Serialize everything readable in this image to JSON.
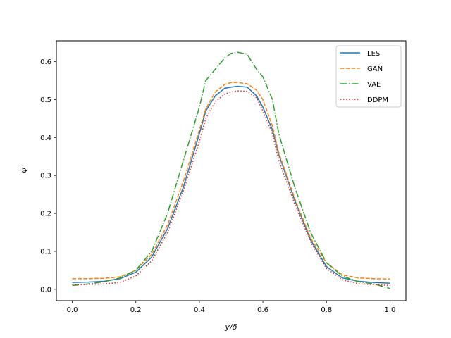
{
  "chart_data": {
    "type": "line",
    "title": "",
    "xlabel": "y/δ",
    "ylabel": "ψ",
    "xlim": [
      -0.05,
      1.05
    ],
    "ylim": [
      -0.03,
      0.655
    ],
    "xticks": [
      0.0,
      0.2,
      0.4,
      0.6,
      0.8,
      1.0
    ],
    "xtick_labels": [
      "0.0",
      "0.2",
      "0.4",
      "0.6",
      "0.8",
      "1.0"
    ],
    "yticks": [
      0.0,
      0.1,
      0.2,
      0.3,
      0.4,
      0.5,
      0.6
    ],
    "ytick_labels": [
      "0.0",
      "0.1",
      "0.2",
      "0.3",
      "0.4",
      "0.5",
      "0.6"
    ],
    "grid": false,
    "legend_position": "upper right",
    "x": [
      0.0,
      0.05,
      0.1,
      0.15,
      0.2,
      0.25,
      0.3,
      0.35,
      0.4,
      0.42,
      0.45,
      0.48,
      0.5,
      0.52,
      0.55,
      0.58,
      0.6,
      0.63,
      0.65,
      0.7,
      0.75,
      0.8,
      0.85,
      0.9,
      0.95,
      1.0
    ],
    "series": [
      {
        "name": "LES",
        "color": "#1f77b4",
        "dash": "solid",
        "values": [
          0.018,
          0.019,
          0.021,
          0.028,
          0.045,
          0.085,
          0.16,
          0.27,
          0.41,
          0.47,
          0.51,
          0.53,
          0.533,
          0.535,
          0.533,
          0.51,
          0.48,
          0.42,
          0.355,
          0.235,
          0.13,
          0.06,
          0.03,
          0.021,
          0.018,
          0.016
        ]
      },
      {
        "name": "GAN",
        "color": "#ff7f0e",
        "dash": "dashed",
        "values": [
          0.028,
          0.028,
          0.029,
          0.033,
          0.05,
          0.092,
          0.17,
          0.285,
          0.42,
          0.475,
          0.52,
          0.54,
          0.545,
          0.545,
          0.542,
          0.525,
          0.5,
          0.43,
          0.36,
          0.24,
          0.135,
          0.07,
          0.038,
          0.03,
          0.028,
          0.027
        ]
      },
      {
        "name": "VAE",
        "color": "#2ca02c",
        "dash": "dashdot",
        "values": [
          0.01,
          0.014,
          0.02,
          0.03,
          0.05,
          0.1,
          0.2,
          0.34,
          0.48,
          0.55,
          0.58,
          0.61,
          0.622,
          0.625,
          0.62,
          0.58,
          0.56,
          0.5,
          0.41,
          0.27,
          0.15,
          0.07,
          0.035,
          0.02,
          0.014,
          0.002
        ]
      },
      {
        "name": "DDPM",
        "color": "#d62728",
        "dash": "dotted",
        "values": [
          0.012,
          0.013,
          0.014,
          0.018,
          0.035,
          0.075,
          0.15,
          0.26,
          0.39,
          0.45,
          0.495,
          0.515,
          0.52,
          0.523,
          0.522,
          0.505,
          0.47,
          0.41,
          0.34,
          0.225,
          0.125,
          0.055,
          0.025,
          0.015,
          0.012,
          0.01
        ]
      }
    ]
  }
}
